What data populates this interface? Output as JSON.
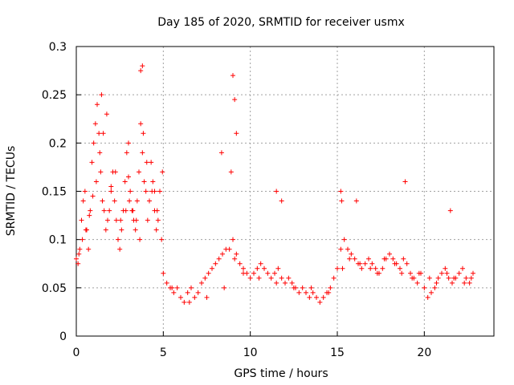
{
  "chart_data": {
    "type": "scatter",
    "title": "Day 185 of 2020, SRMTID for receiver usmx",
    "xlabel": "GPS time / hours",
    "ylabel": "SRMTID / TECUs",
    "xlim": [
      0,
      24
    ],
    "ylim": [
      0,
      0.3
    ],
    "x_ticks": [
      0,
      5,
      10,
      15,
      20
    ],
    "x_tick_labels": [
      "0",
      "5",
      "10",
      "15",
      "20"
    ],
    "y_ticks": [
      0,
      0.05,
      0.1,
      0.15,
      0.2,
      0.25,
      0.3
    ],
    "y_tick_labels": [
      "0",
      "0.05",
      "0.1",
      "0.15",
      "0.2",
      "0.25",
      "0.3"
    ],
    "grid": true,
    "marker": "plus",
    "color": "#ff0000",
    "series": [
      {
        "name": "SRMTID",
        "x": [
          0.0,
          0.1,
          0.2,
          0.3,
          0.4,
          0.5,
          0.6,
          0.7,
          0.8,
          0.9,
          1.0,
          1.1,
          1.2,
          1.3,
          1.4,
          1.5,
          1.6,
          1.7,
          1.8,
          1.9,
          2.0,
          2.1,
          2.2,
          2.3,
          2.4,
          2.5,
          2.6,
          2.7,
          2.8,
          2.9,
          3.0,
          3.1,
          3.2,
          3.3,
          3.4,
          3.5,
          3.6,
          3.7,
          3.8,
          3.9,
          4.0,
          4.1,
          4.2,
          4.3,
          4.4,
          4.5,
          4.6,
          4.7,
          4.8,
          4.9,
          5.0,
          5.2,
          5.4,
          5.6,
          5.8,
          6.0,
          6.2,
          6.4,
          6.6,
          6.8,
          7.0,
          7.2,
          7.4,
          7.6,
          7.8,
          8.0,
          8.2,
          8.4,
          8.6,
          8.8,
          9.0,
          9.2,
          9.4,
          9.6,
          9.8,
          10.0,
          10.2,
          10.4,
          10.6,
          10.8,
          11.0,
          11.2,
          11.4,
          11.6,
          11.8,
          12.0,
          12.2,
          12.4,
          12.6,
          12.8,
          13.0,
          13.2,
          13.4,
          13.6,
          13.8,
          14.0,
          14.2,
          14.4,
          14.6,
          14.8,
          15.0,
          15.2,
          15.4,
          15.6,
          15.8,
          16.0,
          16.2,
          16.4,
          16.6,
          16.8,
          17.0,
          17.2,
          17.4,
          17.6,
          17.8,
          18.0,
          18.2,
          18.4,
          18.6,
          18.8,
          19.0,
          19.2,
          19.4,
          19.6,
          19.8,
          20.0,
          20.2,
          20.4,
          20.6,
          20.8,
          21.0,
          21.2,
          21.4,
          21.6,
          21.8,
          22.0,
          22.2,
          22.4,
          22.6,
          22.8,
          0.15,
          0.35,
          0.55,
          0.75,
          0.95,
          1.15,
          1.35,
          1.55,
          1.75,
          2.25,
          2.55,
          2.85,
          3.05,
          3.25,
          3.45,
          3.65,
          3.85,
          4.05,
          4.35,
          4.65,
          4.95,
          5.5,
          6.5,
          7.5,
          8.5,
          9.1,
          9.6,
          10.5,
          11.5,
          12.5,
          13.5,
          14.5,
          15.3,
          15.7,
          16.3,
          16.9,
          17.3,
          17.7,
          18.3,
          18.7,
          19.3,
          19.7,
          20.3,
          20.7,
          21.3,
          21.7,
          22.3,
          22.7,
          15.2,
          15.25,
          1.45,
          3.7,
          3.8,
          9.0,
          9.1,
          8.35,
          9.2,
          2.0,
          3.0,
          4.5,
          16.1,
          18.9,
          21.5,
          11.5,
          11.8,
          8.9
        ],
        "y": [
          0.08,
          0.075,
          0.09,
          0.12,
          0.14,
          0.15,
          0.11,
          0.09,
          0.13,
          0.18,
          0.2,
          0.22,
          0.24,
          0.21,
          0.17,
          0.14,
          0.13,
          0.11,
          0.12,
          0.13,
          0.15,
          0.17,
          0.14,
          0.12,
          0.1,
          0.09,
          0.11,
          0.13,
          0.16,
          0.19,
          0.2,
          0.15,
          0.13,
          0.12,
          0.11,
          0.14,
          0.17,
          0.22,
          0.19,
          0.16,
          0.15,
          0.12,
          0.14,
          0.18,
          0.16,
          0.13,
          0.11,
          0.12,
          0.15,
          0.1,
          0.065,
          0.055,
          0.05,
          0.045,
          0.05,
          0.04,
          0.035,
          0.045,
          0.05,
          0.04,
          0.045,
          0.055,
          0.06,
          0.065,
          0.07,
          0.075,
          0.08,
          0.085,
          0.09,
          0.09,
          0.1,
          0.085,
          0.075,
          0.07,
          0.065,
          0.06,
          0.065,
          0.07,
          0.075,
          0.07,
          0.065,
          0.06,
          0.065,
          0.07,
          0.06,
          0.055,
          0.06,
          0.055,
          0.05,
          0.045,
          0.05,
          0.045,
          0.04,
          0.045,
          0.04,
          0.035,
          0.04,
          0.045,
          0.05,
          0.06,
          0.07,
          0.09,
          0.1,
          0.09,
          0.085,
          0.08,
          0.075,
          0.07,
          0.075,
          0.08,
          0.075,
          0.07,
          0.065,
          0.07,
          0.08,
          0.085,
          0.08,
          0.075,
          0.07,
          0.08,
          0.075,
          0.065,
          0.06,
          0.055,
          0.065,
          0.05,
          0.04,
          0.045,
          0.05,
          0.06,
          0.065,
          0.07,
          0.06,
          0.055,
          0.06,
          0.065,
          0.07,
          0.06,
          0.055,
          0.065,
          0.085,
          0.1,
          0.11,
          0.125,
          0.145,
          0.16,
          0.19,
          0.21,
          0.23,
          0.17,
          0.12,
          0.13,
          0.14,
          0.13,
          0.12,
          0.1,
          0.21,
          0.18,
          0.15,
          0.13,
          0.17,
          0.05,
          0.035,
          0.04,
          0.05,
          0.08,
          0.065,
          0.06,
          0.055,
          0.05,
          0.05,
          0.045,
          0.07,
          0.08,
          0.075,
          0.07,
          0.065,
          0.08,
          0.075,
          0.065,
          0.06,
          0.065,
          0.06,
          0.055,
          0.065,
          0.06,
          0.055,
          0.06,
          0.15,
          0.14,
          0.25,
          0.275,
          0.28,
          0.27,
          0.245,
          0.19,
          0.21,
          0.155,
          0.165,
          0.15,
          0.14,
          0.16,
          0.13,
          0.15,
          0.14,
          0.17
        ]
      }
    ]
  }
}
